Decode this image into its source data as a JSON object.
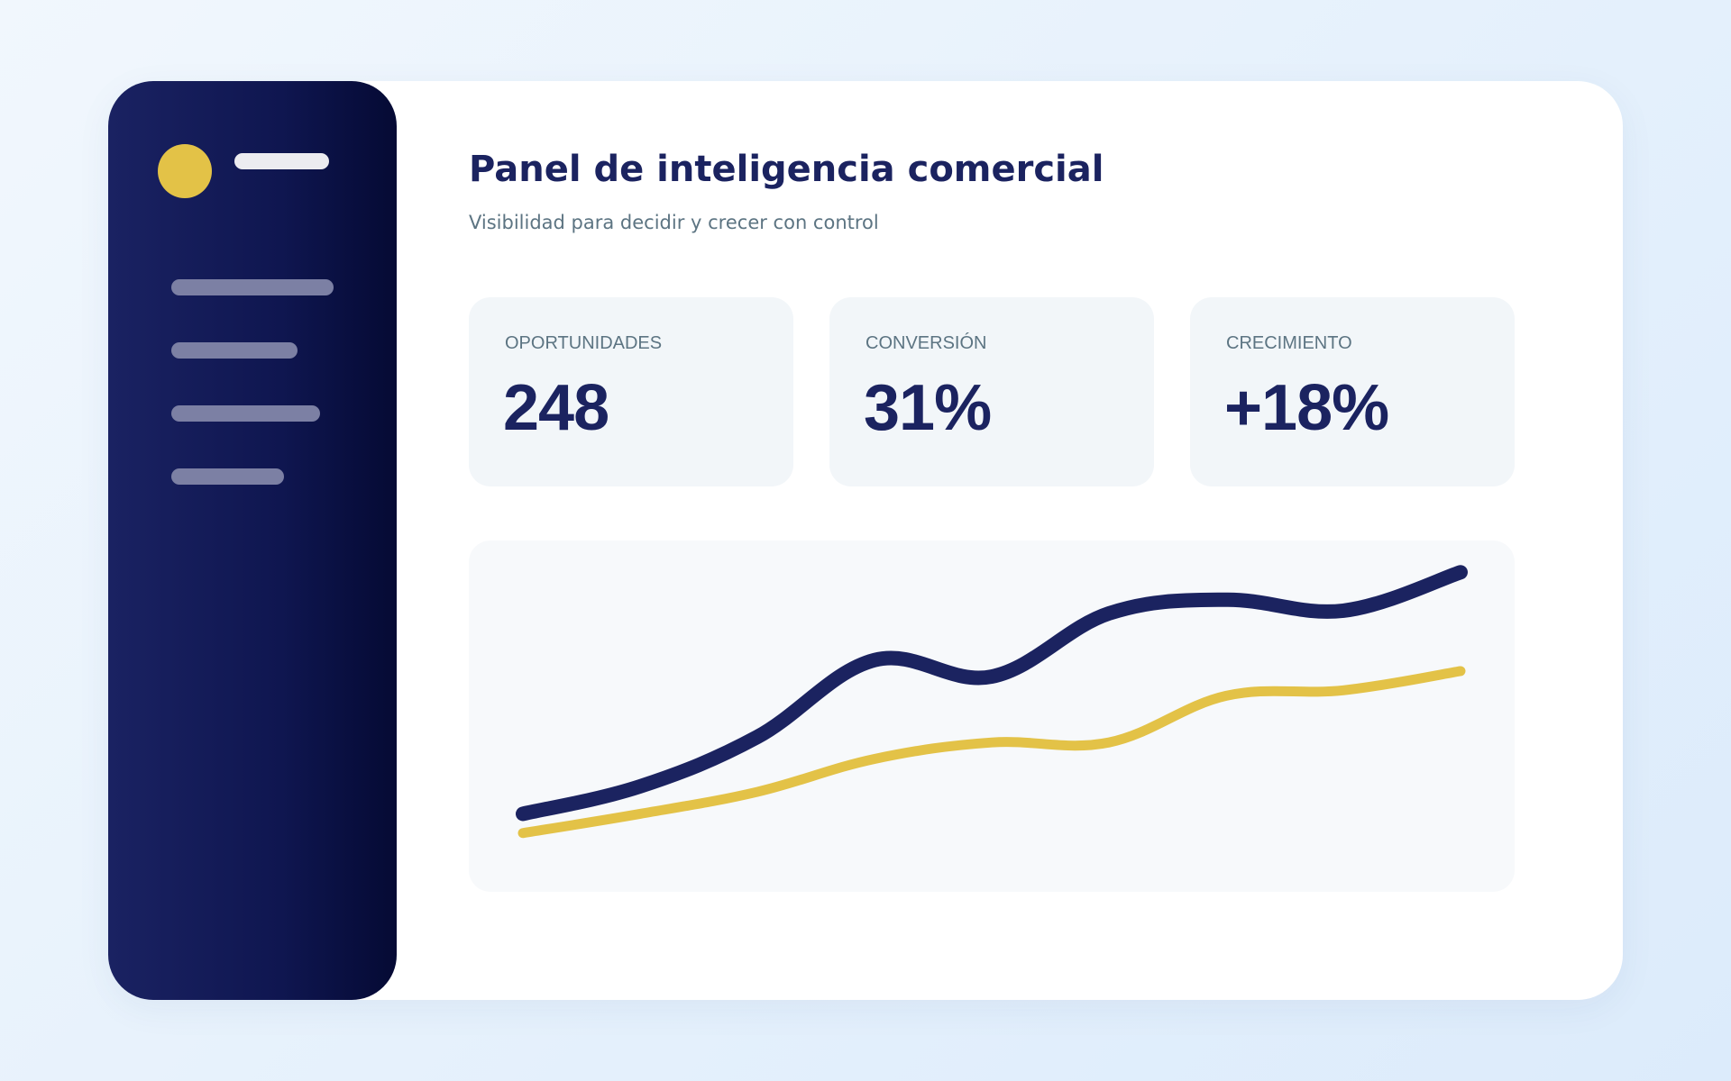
{
  "header": {
    "title": "Panel de inteligencia comercial",
    "subtitle": "Visibilidad para decidir y crecer con control"
  },
  "kpis": [
    {
      "label": "OPORTUNIDADES",
      "value": "248"
    },
    {
      "label": "CONVERSIÓN",
      "value": "31%"
    },
    {
      "label": "CRECIMIENTO",
      "value": "+18%"
    }
  ],
  "colors": {
    "primary": "#1b2360",
    "accent": "#e3c247",
    "muted_text": "#5c7482",
    "card_bg": "#f2f6f9"
  },
  "chart_data": {
    "type": "line",
    "x": [
      0,
      1,
      2,
      3,
      4,
      5,
      6,
      7,
      8
    ],
    "series": [
      {
        "color": "#1b2360",
        "values": [
          12,
          22,
          40,
          68,
          62,
          85,
          90,
          86,
          100
        ]
      },
      {
        "color": "#e3c247",
        "values": [
          5,
          12,
          20,
          32,
          38,
          38,
          55,
          57,
          64
        ]
      }
    ],
    "ylim": [
      0,
      105
    ],
    "grid": false,
    "legend": "none"
  }
}
